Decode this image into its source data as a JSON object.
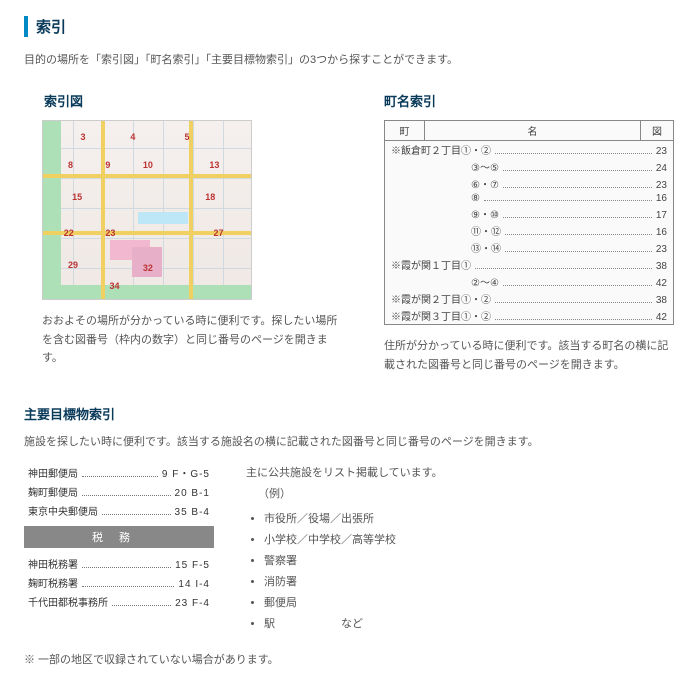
{
  "title": "索引",
  "intro": "目的の場所を「索引図」「町名索引」「主要目標物索引」の3つから探すことができます。",
  "sec1": {
    "title": "索引図",
    "desc": "おおよその場所が分かっている時に便利です。探したい場所を含む図番号（枠内の数字）と同じ番号のページを開きます。"
  },
  "sec2": {
    "title": "町名索引",
    "head": {
      "town": "町",
      "name": "名",
      "pg": "図"
    },
    "rows": [
      {
        "name": "※飯倉町２丁目①・②",
        "pg": "23"
      },
      {
        "name": "③～⑤",
        "pg": "24"
      },
      {
        "name": "⑥・⑦",
        "pg": "23"
      },
      {
        "name": "⑧",
        "pg": "16"
      },
      {
        "name": "⑨・⑩",
        "pg": "17"
      },
      {
        "name": "⑪・⑫",
        "pg": "16"
      },
      {
        "name": "⑬・⑭",
        "pg": "23"
      },
      {
        "name": "※霞が関１丁目①",
        "pg": "38"
      },
      {
        "name": "②～④",
        "pg": "42"
      },
      {
        "name": "※霞が関２丁目①・②",
        "pg": "38"
      },
      {
        "name": "※霞が関３丁目①・②",
        "pg": "42"
      }
    ],
    "desc": "住所が分かっている時に便利です。該当する町名の横に記載された図番号と同じ番号のページを開きます。"
  },
  "sec3": {
    "title": "主要目標物索引",
    "intro": "施設を探したい時に便利です。該当する施設名の横に記載された図番号と同じ番号のページを開きます。",
    "post": [
      {
        "name": "神田郵便局",
        "val": "9 F・G-5"
      },
      {
        "name": "麹町郵便局",
        "val": "20 B-1"
      },
      {
        "name": "東京中央郵便局",
        "val": "35 B-4"
      }
    ],
    "taxHeader": "税務",
    "tax": [
      {
        "name": "神田税務署",
        "val": "15 F-5"
      },
      {
        "name": "麹町税務署",
        "val": "14 I-4"
      },
      {
        "name": "千代田都税事務所",
        "val": "23 F-4"
      }
    ],
    "rightHead": "主に公共施設をリスト掲載しています。",
    "example": "（例）",
    "items": [
      "市役所／役場／出張所",
      "小学校／中学校／高等学校",
      "警察署",
      "消防署",
      "郵便局",
      "駅　　　　　　など"
    ]
  },
  "footnote": "※ 一部の地区で収録されていない場合があります。"
}
